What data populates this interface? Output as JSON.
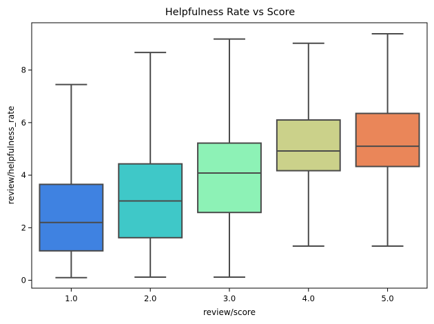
{
  "chart_data": {
    "type": "box",
    "title": "Helpfulness Rate vs Score",
    "xlabel": "review/score",
    "ylabel": "review/helpfulness_rate",
    "categories": [
      "1.0",
      "2.0",
      "3.0",
      "4.0",
      "5.0"
    ],
    "ylim": [
      -0.3,
      9.8
    ],
    "yticks": [
      0,
      2,
      4,
      6,
      8
    ],
    "grid": false,
    "colors": [
      "#3f82e1",
      "#3fc8c8",
      "#8df2b6",
      "#cbd18a",
      "#ea8659"
    ],
    "boxes": [
      {
        "category": "1.0",
        "whisker_low": 0.1,
        "q1": 1.12,
        "median": 2.2,
        "q3": 3.65,
        "whisker_high": 7.45
      },
      {
        "category": "2.0",
        "whisker_low": 0.12,
        "q1": 1.62,
        "median": 3.02,
        "q3": 4.43,
        "whisker_high": 8.67
      },
      {
        "category": "3.0",
        "whisker_low": 0.12,
        "q1": 2.58,
        "median": 4.08,
        "q3": 5.22,
        "whisker_high": 9.18
      },
      {
        "category": "4.0",
        "whisker_low": 1.3,
        "q1": 4.17,
        "median": 4.92,
        "q3": 6.1,
        "whisker_high": 9.02
      },
      {
        "category": "5.0",
        "whisker_low": 1.3,
        "q1": 4.33,
        "median": 5.1,
        "q3": 6.35,
        "whisker_high": 9.38
      }
    ]
  }
}
